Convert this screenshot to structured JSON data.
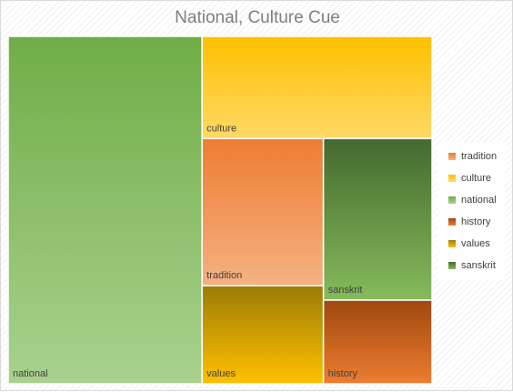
{
  "chart_data": {
    "type": "treemap",
    "title": "National, Culture Cue",
    "xlabel": "",
    "ylabel": "",
    "legend_position": "right",
    "grid": false,
    "nodes": [
      {
        "name": "national",
        "value": 43,
        "color_top": "#70ad47",
        "color_bottom": "#a9d18e"
      },
      {
        "name": "culture",
        "value": 15,
        "color_top": "#ffc000",
        "color_bottom": "#ffd966"
      },
      {
        "name": "tradition",
        "value": 11.4,
        "color_top": "#ed7d31",
        "color_bottom": "#f4b183"
      },
      {
        "name": "values",
        "value": 7.6,
        "color_top": "#9c7c08",
        "color_bottom": "#ffc000"
      },
      {
        "name": "sanskrit",
        "value": 11.2,
        "color_top": "#446a2e",
        "color_bottom": "#85bb5c"
      },
      {
        "name": "history",
        "value": 5.8,
        "color_top": "#9e480e",
        "color_bottom": "#ed7d31"
      }
    ],
    "legend": [
      "tradition",
      "culture",
      "national",
      "history",
      "values",
      "sanskrit"
    ]
  }
}
